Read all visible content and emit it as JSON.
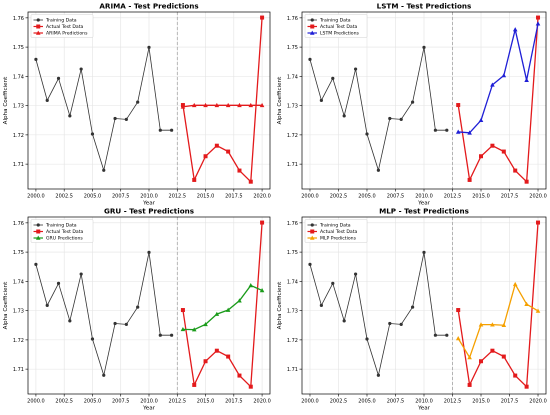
{
  "chart_data": [
    {
      "type": "line",
      "title": "ARIMA - Test Predictions",
      "xlabel": "Year",
      "ylabel": "Alpha Coefficient",
      "xlim": [
        1999.3,
        2020.7
      ],
      "ylim": [
        1.7015,
        1.762
      ],
      "x_ticks": [
        "2000.0",
        "2002.5",
        "2005.0",
        "2007.5",
        "2010.0",
        "2012.5",
        "2015.0",
        "2017.5",
        "2020.0"
      ],
      "y_ticks": [
        "1.71",
        "1.72",
        "1.73",
        "1.74",
        "1.75",
        "1.76"
      ],
      "split_x": 2012.5,
      "legend": "top-left",
      "grid": true,
      "series": [
        {
          "name": "Training Data",
          "color": "#333333",
          "marker": "circle",
          "x": [
            2000,
            2001,
            2002,
            2003,
            2004,
            2005,
            2006,
            2007,
            2008,
            2009,
            2010,
            2011,
            2012
          ],
          "y": [
            1.7458,
            1.7318,
            1.7393,
            1.7265,
            1.7425,
            1.7203,
            1.7079,
            1.7256,
            1.7253,
            1.7312,
            1.7499,
            1.7216,
            1.7216
          ]
        },
        {
          "name": "Actual Test Data",
          "color": "#e31a1c",
          "marker": "square",
          "x": [
            2013,
            2014,
            2015,
            2016,
            2017,
            2018,
            2019,
            2020
          ],
          "y": [
            1.7302,
            1.7046,
            1.7127,
            1.7163,
            1.7143,
            1.7078,
            1.704,
            1.7601
          ]
        },
        {
          "name": "ARIMA Predictions",
          "color": "#e31a1c",
          "marker": "triangle",
          "x": [
            2013,
            2014,
            2015,
            2016,
            2017,
            2018,
            2019,
            2020
          ],
          "y": [
            1.7296,
            1.7301,
            1.7301,
            1.7301,
            1.7301,
            1.7301,
            1.7301,
            1.7301
          ]
        }
      ]
    },
    {
      "type": "line",
      "title": "LSTM - Test Predictions",
      "xlabel": "Year",
      "ylabel": "Alpha Coefficient",
      "xlim": [
        1999.3,
        2020.7
      ],
      "ylim": [
        1.7015,
        1.762
      ],
      "x_ticks": [
        "2000.0",
        "2002.5",
        "2005.0",
        "2007.5",
        "2010.0",
        "2012.5",
        "2015.0",
        "2017.5",
        "2020.0"
      ],
      "y_ticks": [
        "1.71",
        "1.72",
        "1.73",
        "1.74",
        "1.75",
        "1.76"
      ],
      "split_x": 2012.5,
      "legend": "top-left",
      "grid": true,
      "series": [
        {
          "name": "Training Data",
          "color": "#333333",
          "marker": "circle",
          "x": [
            2000,
            2001,
            2002,
            2003,
            2004,
            2005,
            2006,
            2007,
            2008,
            2009,
            2010,
            2011,
            2012
          ],
          "y": [
            1.7458,
            1.7318,
            1.7393,
            1.7265,
            1.7425,
            1.7203,
            1.7079,
            1.7256,
            1.7253,
            1.7312,
            1.7499,
            1.7216,
            1.7216
          ]
        },
        {
          "name": "Actual Test Data",
          "color": "#e31a1c",
          "marker": "square",
          "x": [
            2013,
            2014,
            2015,
            2016,
            2017,
            2018,
            2019,
            2020
          ],
          "y": [
            1.7302,
            1.7046,
            1.7127,
            1.7163,
            1.7143,
            1.7078,
            1.704,
            1.7601
          ]
        },
        {
          "name": "LSTM Predictions",
          "color": "#1f1fd6",
          "marker": "triangle",
          "x": [
            2013,
            2014,
            2015,
            2016,
            2017,
            2018,
            2019,
            2020
          ],
          "y": [
            1.721,
            1.7207,
            1.725,
            1.7371,
            1.7403,
            1.756,
            1.7387,
            1.758
          ]
        }
      ]
    },
    {
      "type": "line",
      "title": "GRU - Test Predictions",
      "xlabel": "Year",
      "ylabel": "Alpha Coefficient",
      "xlim": [
        1999.3,
        2020.7
      ],
      "ylim": [
        1.7015,
        1.762
      ],
      "x_ticks": [
        "2000.0",
        "2002.5",
        "2005.0",
        "2007.5",
        "2010.0",
        "2012.5",
        "2015.0",
        "2017.5",
        "2020.0"
      ],
      "y_ticks": [
        "1.71",
        "1.72",
        "1.73",
        "1.74",
        "1.75",
        "1.76"
      ],
      "split_x": 2012.5,
      "legend": "top-left",
      "grid": true,
      "series": [
        {
          "name": "Training Data",
          "color": "#333333",
          "marker": "circle",
          "x": [
            2000,
            2001,
            2002,
            2003,
            2004,
            2005,
            2006,
            2007,
            2008,
            2009,
            2010,
            2011,
            2012
          ],
          "y": [
            1.7458,
            1.7318,
            1.7393,
            1.7265,
            1.7425,
            1.7203,
            1.7079,
            1.7256,
            1.7253,
            1.7312,
            1.7499,
            1.7216,
            1.7216
          ]
        },
        {
          "name": "Actual Test Data",
          "color": "#e31a1c",
          "marker": "square",
          "x": [
            2013,
            2014,
            2015,
            2016,
            2017,
            2018,
            2019,
            2020
          ],
          "y": [
            1.7302,
            1.7046,
            1.7127,
            1.7163,
            1.7143,
            1.7078,
            1.704,
            1.7601
          ]
        },
        {
          "name": "GRU Predictions",
          "color": "#1a9b1a",
          "marker": "triangle",
          "x": [
            2013,
            2014,
            2015,
            2016,
            2017,
            2018,
            2019,
            2020
          ],
          "y": [
            1.7236,
            1.7235,
            1.7253,
            1.7288,
            1.7302,
            1.7334,
            1.7386,
            1.7369
          ]
        }
      ]
    },
    {
      "type": "line",
      "title": "MLP - Test Predictions",
      "xlabel": "Year",
      "ylabel": "Alpha Coefficient",
      "xlim": [
        1999.3,
        2020.7
      ],
      "ylim": [
        1.7015,
        1.762
      ],
      "x_ticks": [
        "2000.0",
        "2002.5",
        "2005.0",
        "2007.5",
        "2010.0",
        "2012.5",
        "2015.0",
        "2017.5",
        "2020.0"
      ],
      "y_ticks": [
        "1.71",
        "1.72",
        "1.73",
        "1.74",
        "1.75",
        "1.76"
      ],
      "split_x": 2012.5,
      "legend": "top-left",
      "grid": true,
      "series": [
        {
          "name": "Training Data",
          "color": "#333333",
          "marker": "circle",
          "x": [
            2000,
            2001,
            2002,
            2003,
            2004,
            2005,
            2006,
            2007,
            2008,
            2009,
            2010,
            2011,
            2012
          ],
          "y": [
            1.7458,
            1.7318,
            1.7393,
            1.7265,
            1.7425,
            1.7203,
            1.7079,
            1.7256,
            1.7253,
            1.7312,
            1.7499,
            1.7216,
            1.7216
          ]
        },
        {
          "name": "Actual Test Data",
          "color": "#e31a1c",
          "marker": "square",
          "x": [
            2013,
            2014,
            2015,
            2016,
            2017,
            2018,
            2019,
            2020
          ],
          "y": [
            1.7302,
            1.7046,
            1.7127,
            1.7163,
            1.7143,
            1.7078,
            1.704,
            1.7601
          ]
        },
        {
          "name": "MLP Predictions",
          "color": "#f5a000",
          "marker": "triangle",
          "x": [
            2013,
            2014,
            2015,
            2016,
            2017,
            2018,
            2019,
            2020
          ],
          "y": [
            1.7205,
            1.714,
            1.7252,
            1.7252,
            1.725,
            1.739,
            1.7322,
            1.7299
          ]
        }
      ]
    }
  ]
}
